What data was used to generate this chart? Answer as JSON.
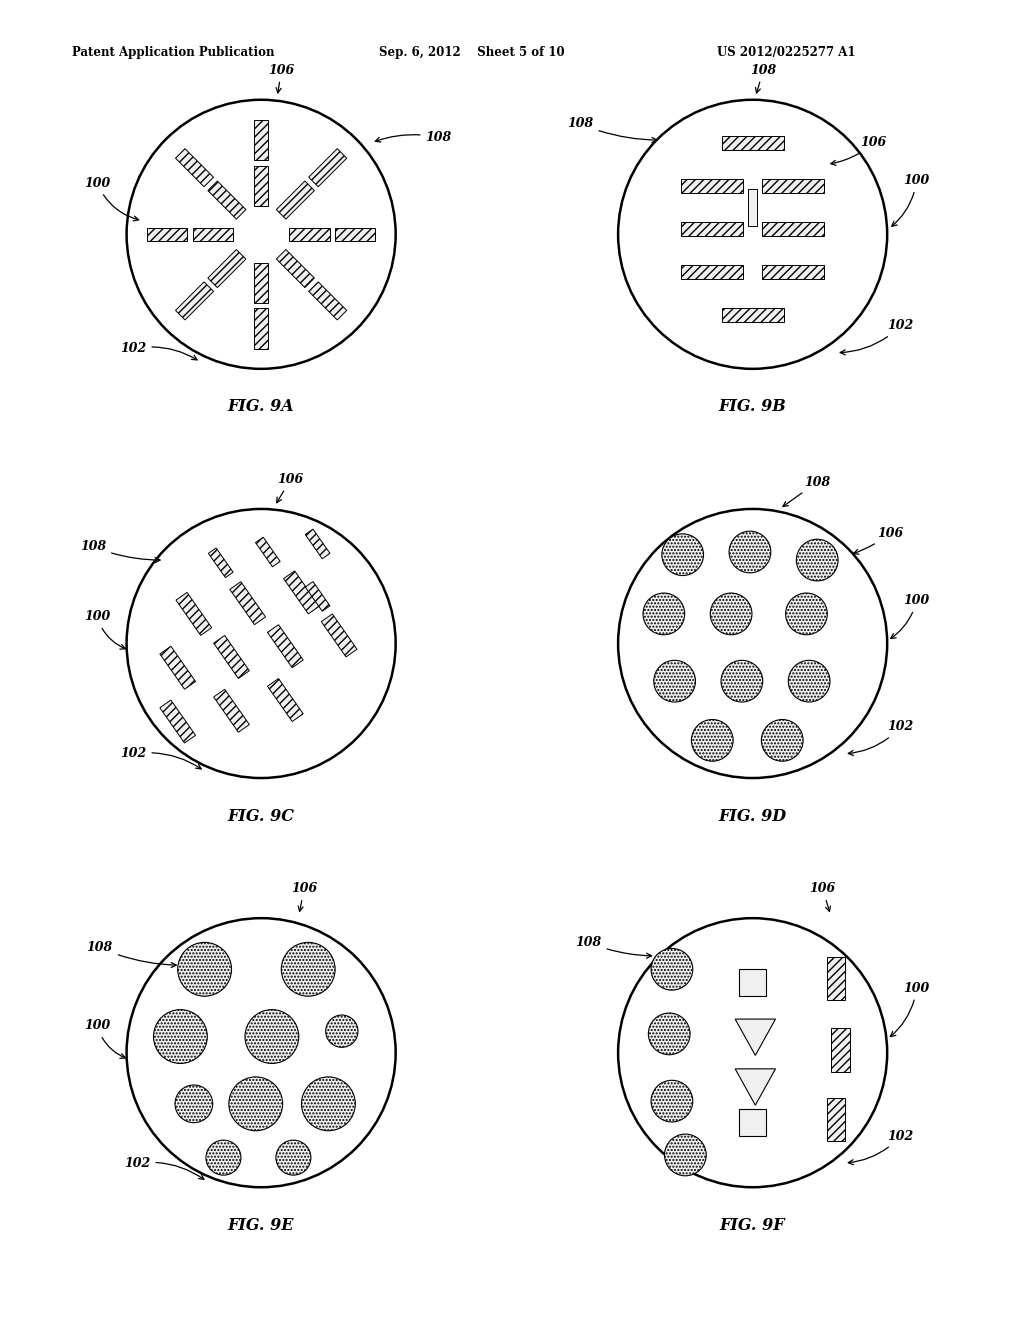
{
  "header_left": "Patent Application Publication",
  "header_mid": "Sep. 6, 2012    Sheet 5 of 10",
  "header_right": "US 2012/0225277 A1",
  "bg_color": "#ffffff",
  "circle_bg": "#d8d8d8",
  "element_fill": "#e8e8e8",
  "element_edge": "#000000",
  "fig9a_label": "FIG. 9A",
  "fig9b_label": "FIG. 9B",
  "fig9c_label": "FIG. 9C",
  "fig9d_label": "FIG. 9D",
  "fig9e_label": "FIG. 9E",
  "fig9f_label": "FIG. 9F"
}
